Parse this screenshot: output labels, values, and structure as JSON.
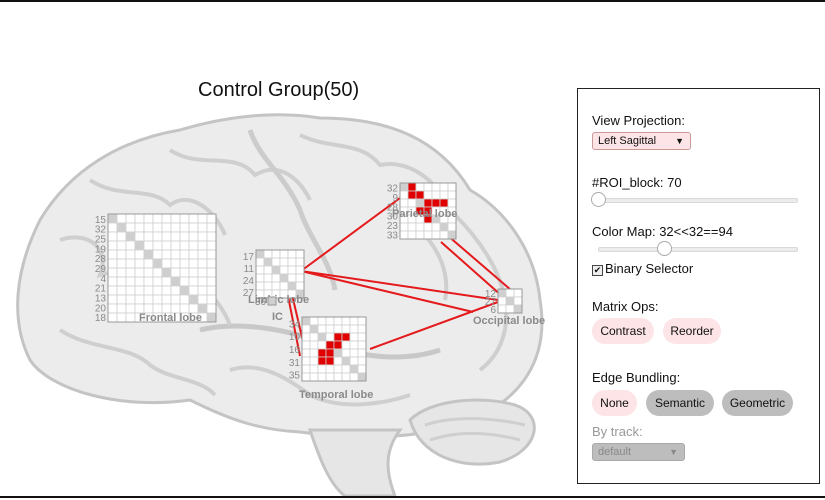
{
  "view_title": "Control Group(50)",
  "brain": {
    "regions": [
      {
        "name": "Frontal lobe",
        "labels": [
          "15",
          "32",
          "25",
          "19",
          "28",
          "29",
          "4",
          "21",
          "13",
          "20",
          "18"
        ],
        "active": []
      },
      {
        "name": "Limbic lobe",
        "labels": [
          "17",
          "11",
          "24",
          "27"
        ],
        "active": []
      },
      {
        "name": "IC",
        "labels": [
          "36"
        ],
        "active": []
      },
      {
        "name": "Parietal lobe",
        "labels": [
          "32",
          "9",
          "28",
          "30",
          "23",
          "33"
        ],
        "active": [
          [
            0,
            1
          ],
          [
            1,
            1
          ],
          [
            1,
            2
          ],
          [
            2,
            3
          ],
          [
            2,
            4
          ],
          [
            2,
            5
          ],
          [
            3,
            2
          ],
          [
            3,
            3
          ],
          [
            4,
            3
          ]
        ]
      },
      {
        "name": "Occipital lobe",
        "labels": [
          "12",
          "27",
          "6"
        ],
        "active": []
      },
      {
        "name": "Temporal lobe",
        "labels": [
          "34",
          "10",
          "16",
          "31",
          "35"
        ],
        "active": [
          [
            2,
            4
          ],
          [
            2,
            5
          ],
          [
            3,
            3
          ],
          [
            3,
            4
          ],
          [
            4,
            2
          ],
          [
            4,
            3
          ],
          [
            5,
            2
          ],
          [
            5,
            3
          ]
        ]
      }
    ],
    "edge_color": "#e41a1c",
    "active_cell_color": "#e00000"
  },
  "panel": {
    "view_projection_label": "View Projection:",
    "view_projection_value": "Left Sagittal",
    "roi_block_label": "#ROI_block: 70",
    "roi_block_value": 0.0,
    "color_map_label": "Color Map: 32<<32==94",
    "color_map_value": 0.33,
    "binary_selector_label": "Binary Selector",
    "binary_selector_checked": true,
    "matrix_ops_label": "Matrix Ops:",
    "matrix_ops_buttons": [
      "Contrast",
      "Reorder"
    ],
    "edge_bundling_label": "Edge Bundling:",
    "edge_bundling_buttons": [
      "None",
      "Semantic",
      "Geometric"
    ],
    "edge_bundling_selected": "None",
    "by_track_label": "By track:",
    "by_track_value": "default"
  },
  "colors": {
    "pink_button": "#fde4e6",
    "grey_button": "#bdbdbd",
    "brain_outline": "#c8c8c8",
    "brain_fill": "#ebebeb"
  }
}
